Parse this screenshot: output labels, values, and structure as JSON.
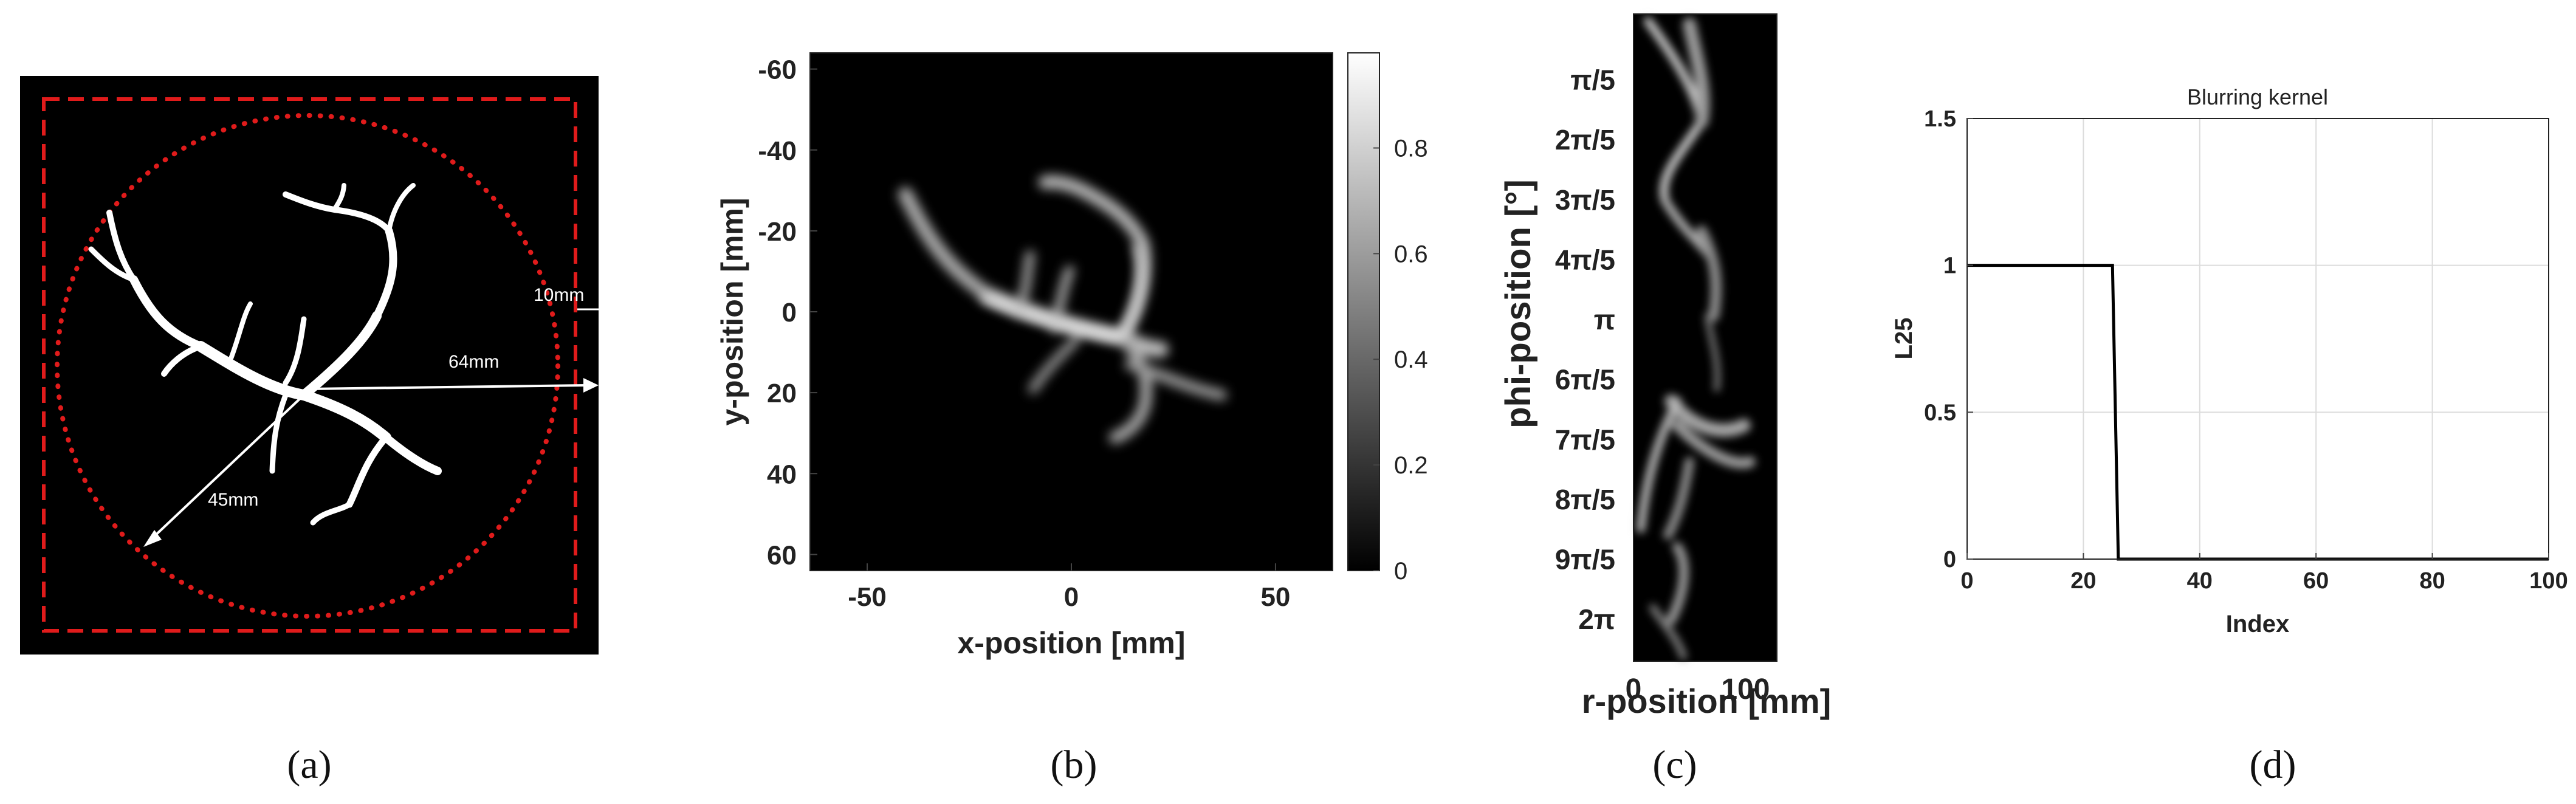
{
  "panel_a": {
    "annotations": {
      "d1": "10mm",
      "d2": "64mm",
      "d3": "45mm"
    },
    "caption": "(a)"
  },
  "chart_data": [
    {
      "id": "b",
      "type": "heatmap",
      "title": "",
      "xlabel": "x-position [mm]",
      "ylabel": "y-position [mm]",
      "xlim": [
        -64,
        64
      ],
      "ylim": [
        -64,
        64
      ],
      "y_reversed": true,
      "xticks": [
        -50,
        0,
        50
      ],
      "yticks": [
        -60,
        -40,
        -20,
        0,
        20,
        40,
        60
      ],
      "colorbar": {
        "range": [
          0,
          0.98
        ],
        "ticks": [
          0,
          0.2,
          0.4,
          0.6,
          0.8
        ],
        "colormap": "gray"
      },
      "caption": "(b)"
    },
    {
      "id": "c",
      "type": "heatmap",
      "title": "",
      "xlabel": "r-position [mm]",
      "ylabel": "phi-position [°]",
      "xlim": [
        0,
        128
      ],
      "xticks": [
        0,
        100
      ],
      "yticklabels": [
        "π/5",
        "2π/5",
        "3π/5",
        "4π/5",
        "π",
        "6π/5",
        "7π/5",
        "8π/5",
        "9π/5",
        "2π"
      ],
      "caption": "(c)"
    },
    {
      "id": "d",
      "type": "line",
      "title": "Blurring kernel",
      "xlabel": "Index",
      "ylabel": "L25",
      "xlim": [
        0,
        100
      ],
      "ylim": [
        0,
        1.5
      ],
      "xticks": [
        0,
        20,
        40,
        60,
        80,
        100
      ],
      "yticks": [
        0,
        0.5,
        1,
        1.5
      ],
      "grid": true,
      "x": [
        0,
        25,
        26,
        100
      ],
      "values": [
        1,
        1,
        0,
        0
      ],
      "line_color": "#000000",
      "caption": "(d)"
    }
  ]
}
